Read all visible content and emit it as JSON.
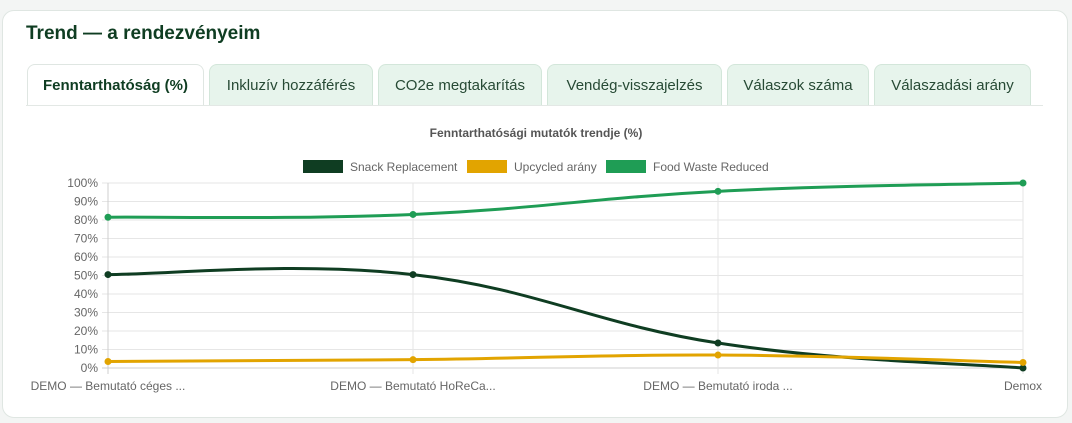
{
  "page": {
    "title": "Trend — a rendezvényeim"
  },
  "tabs": [
    {
      "label": "Fenntarthatóság (%)",
      "active": true
    },
    {
      "label": "Inkluzív hozzáférés",
      "active": false
    },
    {
      "label": "CO2e megtakarítás",
      "active": false
    },
    {
      "label": "Vendég-visszajelzés",
      "active": false
    },
    {
      "label": "Válaszok száma",
      "active": false
    },
    {
      "label": "Válaszadási arány",
      "active": false
    }
  ],
  "chart_data": {
    "type": "line",
    "title": "Fenntarthatósági mutatók trendje (%)",
    "categories": [
      "DEMO — Bemutató céges ...",
      "DEMO — Bemutató HoReCa...",
      "DEMO — Bemutató iroda ...",
      "Demox"
    ],
    "series": [
      {
        "name": "Snack Replacement",
        "values": [
          50.5,
          50.5,
          13.5,
          0
        ],
        "color": "#0f3d22"
      },
      {
        "name": "Upcycled arány",
        "values": [
          3.5,
          4.5,
          7,
          3
        ],
        "color": "#e2a400"
      },
      {
        "name": "Food Waste Reduced",
        "values": [
          81.5,
          83,
          95.5,
          100
        ],
        "color": "#1f9d55"
      }
    ],
    "ylim": [
      0,
      100
    ],
    "yticks": [
      "0%",
      "10%",
      "20%",
      "30%",
      "40%",
      "50%",
      "60%",
      "70%",
      "80%",
      "90%",
      "100%"
    ],
    "grid": true,
    "legend_position": "top"
  },
  "colors": {
    "accent": "#0f3d22",
    "tab_bg": "#e7f4ec"
  }
}
